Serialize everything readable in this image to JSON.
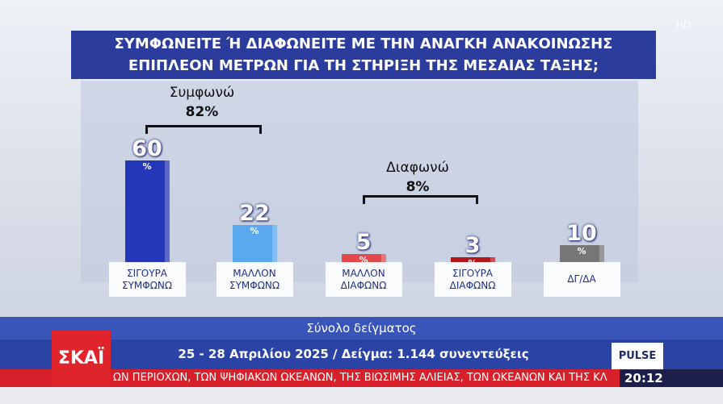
{
  "chart_data": {
    "type": "bar",
    "title": [
      "ΣΥΜΦΩΝΕΙΤΕ Ή ΔΙΑΦΩΝΕΙΤΕ ΜΕ ΤΗΝ ΑΝΑΓΚΗ ΑΝΑΚΟΙΝΩΣΗΣ",
      "ΕΠΙΠΛΕΟΝ ΜΕΤΡΩΝ ΓΙΑ ΤΗ ΣΤΗΡΙΞΗ ΤΗΣ ΜΕΣΑΙΑΣ ΤΑΞΗΣ;"
    ],
    "categories": [
      "ΣΙΓΟΥΡΑ ΣΥΜΦΩΝΩ",
      "ΜΑΛΛΟΝ ΣΥΜΦΩΝΩ",
      "ΜΑΛΛΟΝ ΔΙΑΦΩΝΩ",
      "ΣΙΓΟΥΡΑ ΔΙΑΦΩΝΩ",
      "ΔΓ/ΔΑ"
    ],
    "values": [
      60,
      22,
      5,
      3,
      10
    ],
    "value_unit": "%",
    "colors": [
      "#2437b8",
      "#5aa8ee",
      "#e5484a",
      "#b5161b",
      "#767676"
    ],
    "annotations": [
      {
        "text": "Συμφωνώ",
        "total": "82%"
      },
      {
        "text": "Διαφωνώ",
        "total": "8%"
      }
    ]
  },
  "footer": {
    "sample_title": "Σύνολο δείγματος",
    "details": "25 - 28 Απριλίου 2025 / Δείγμα: 1.144 συνεντεύξεις"
  },
  "broadcast": {
    "channel": "ΣΚΑΪ",
    "badge": "HD",
    "pollster": "PULSE",
    "ticker": "ΩΝ ΠΕΡΙΟΧΩΝ, ΤΩΝ ΨΗΦΙΑΚΩΝ ΩΚΕΑΝΩΝ, ΤΗΣ ΒΙΩΣΙΜΗΣ ΑΛΙΕΙΑΣ, ΤΩΝ ΩΚΕΑΝΩΝ ΚΑΙ ΤΗΣ ΚΛ",
    "time": "20:12"
  }
}
